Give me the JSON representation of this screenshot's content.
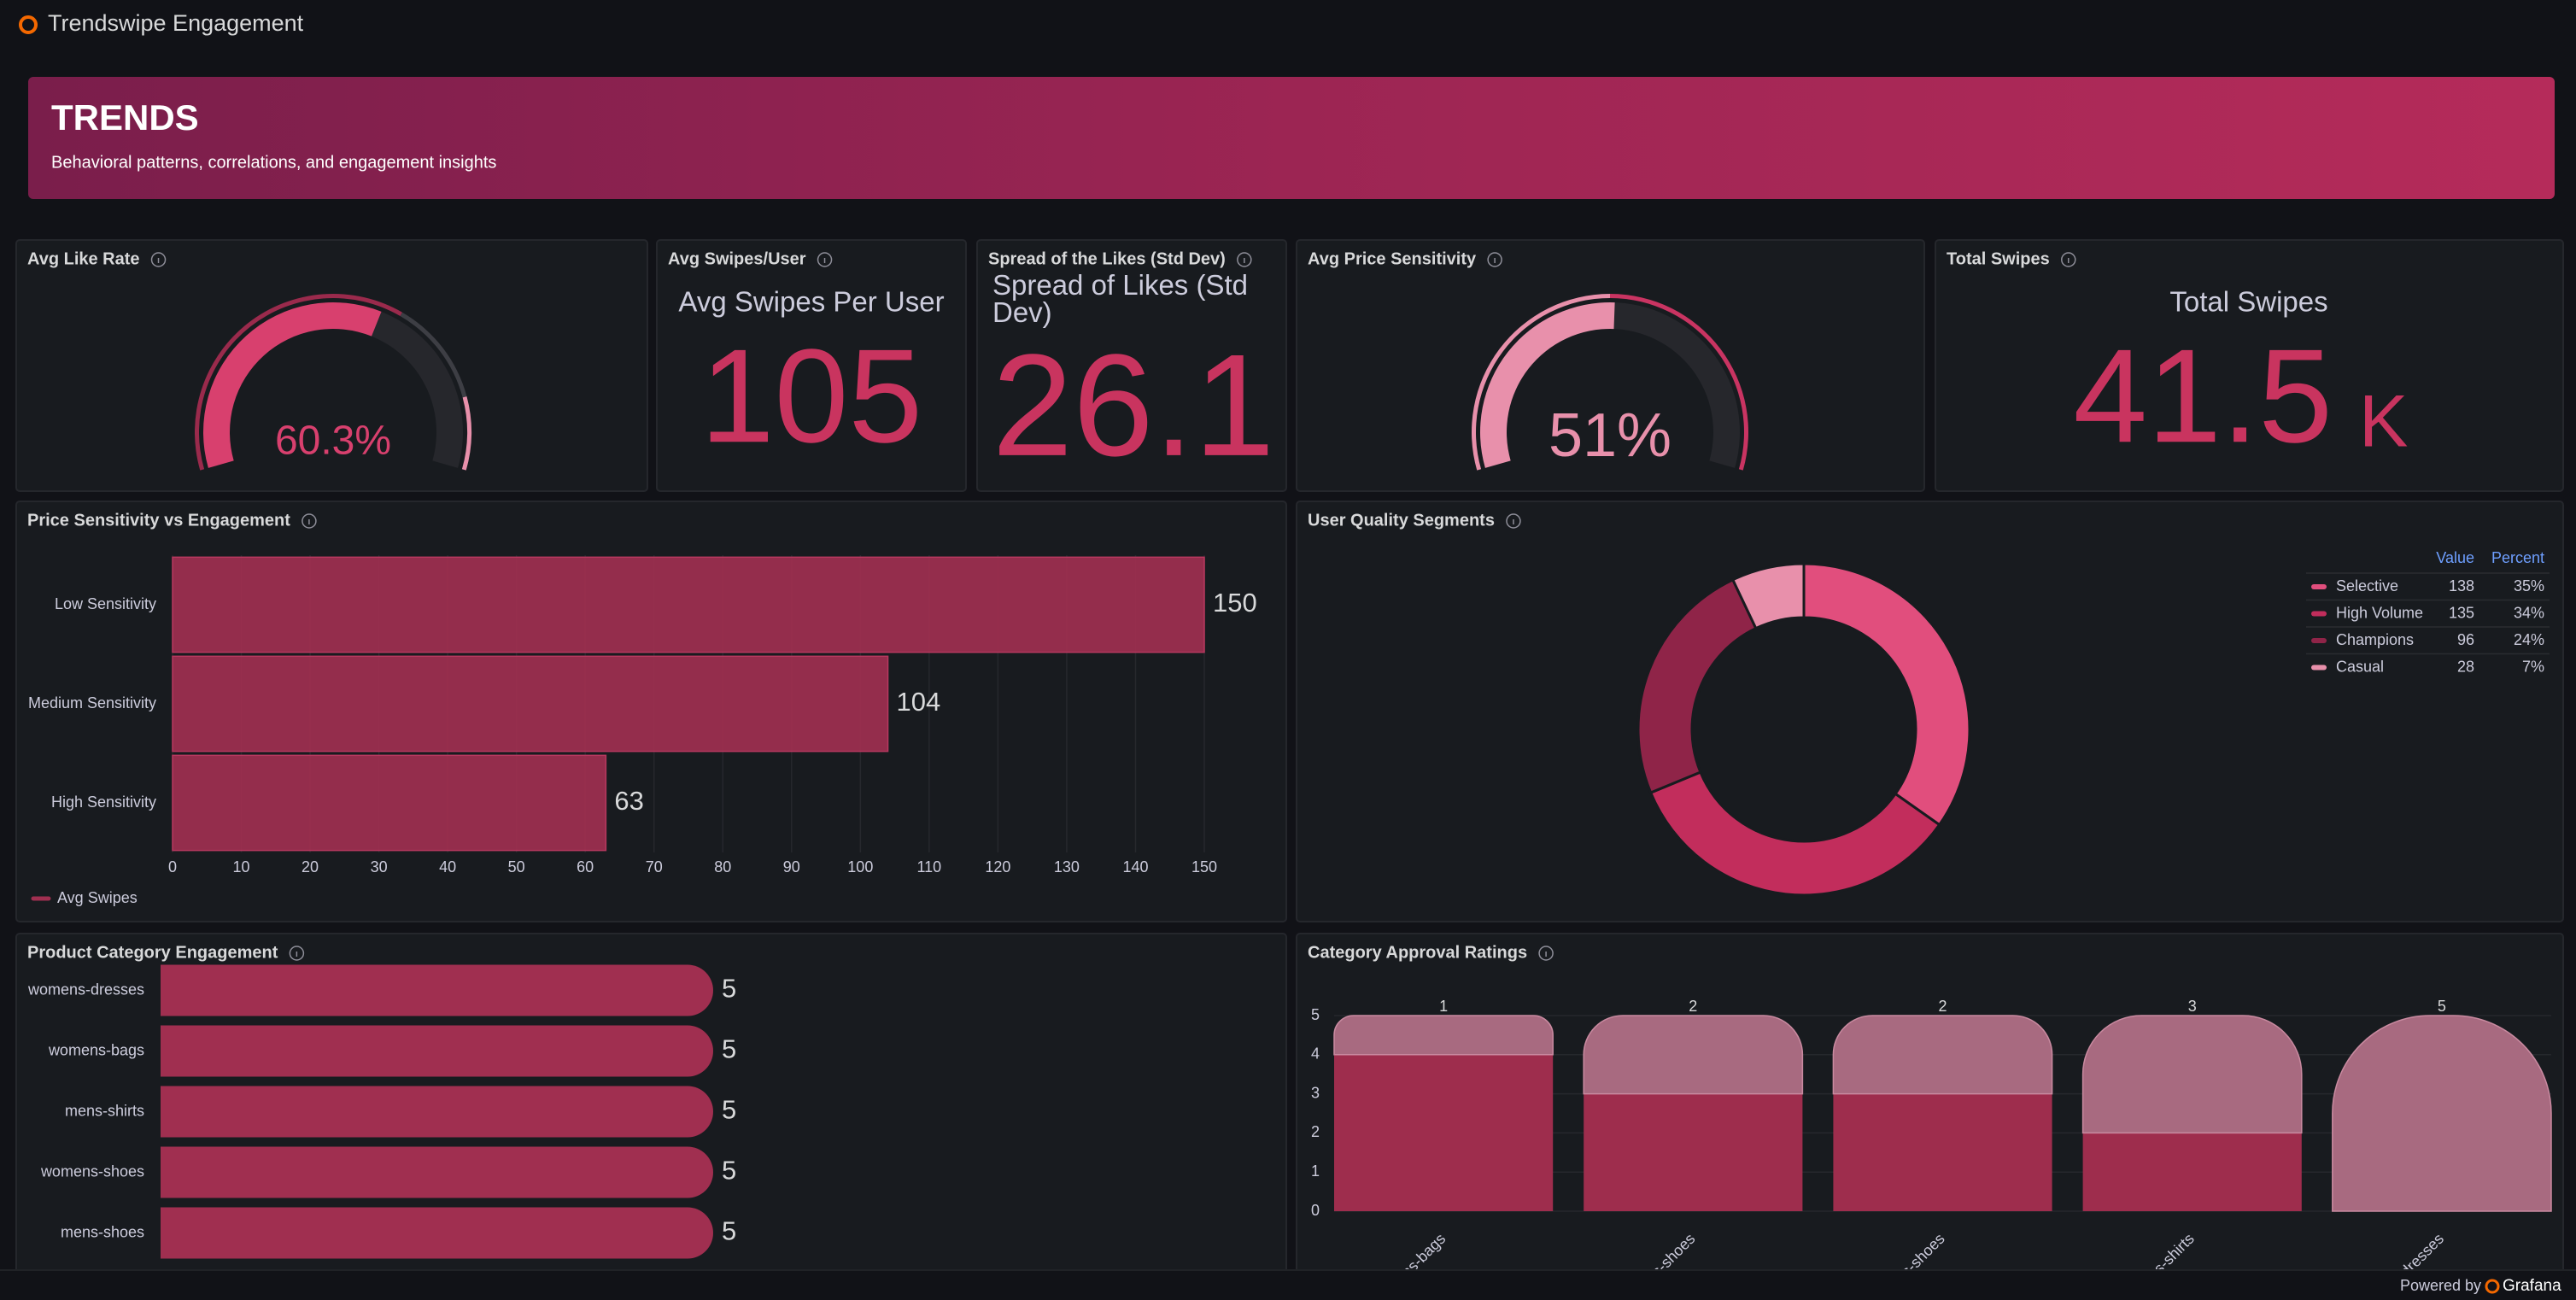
{
  "header": {
    "title": "Trendswipe Engagement"
  },
  "banner": {
    "title": "TRENDS",
    "subtitle": "Behavioral patterns, correlations, and engagement insights"
  },
  "panels": {
    "avg_like_rate": {
      "title": "Avg Like Rate",
      "type": "gauge",
      "value": 60.3,
      "value_label": "60.3%",
      "lim": [
        0,
        100
      ],
      "color": "#d8406e"
    },
    "avg_swipes": {
      "title": "Avg Swipes/User",
      "type": "stat",
      "label": "Avg Swipes Per User",
      "value": 105,
      "color": "#c9345f"
    },
    "spread": {
      "title": "Spread of the Likes (Std Dev)",
      "type": "stat",
      "label": "Spread of Likes (Std Dev)",
      "value": 26.1,
      "color": "#c9345f"
    },
    "price_sensitivity": {
      "title": "Avg Price Sensitivity",
      "type": "gauge",
      "value": 51,
      "value_label": "51%",
      "lim": [
        0,
        100
      ],
      "color": "#e890ab"
    },
    "total_swipes": {
      "title": "Total Swipes",
      "type": "stat",
      "label": "Total Swipes",
      "value": 41.5,
      "unit": "K",
      "color": "#c9345f"
    },
    "price_vs_engagement": {
      "title": "Price Sensitivity vs Engagement",
      "chart_data": {
        "type": "bar",
        "orientation": "horizontal",
        "categories": [
          "Low Sensitivity",
          "Medium Sensitivity",
          "High Sensitivity"
        ],
        "series": [
          {
            "name": "Avg Swipes",
            "color": "#a02f50",
            "values": [
              150,
              104,
              63
            ]
          }
        ],
        "xlim": [
          0,
          150
        ],
        "xticks": [
          0,
          10,
          20,
          30,
          40,
          50,
          60,
          70,
          80,
          90,
          100,
          110,
          120,
          130,
          140,
          150
        ],
        "grid": true,
        "legend": "bottom-left"
      }
    },
    "user_segments": {
      "title": "User Quality Segments",
      "chart_data": {
        "type": "donut",
        "categories": [
          "Selective",
          "High Volume",
          "Champions",
          "Casual"
        ],
        "values": [
          138,
          135,
          96,
          28
        ],
        "percent": {
          "values": [
            35,
            34,
            24,
            7
          ],
          "value_labels": [
            "35%",
            "34%",
            "24%",
            "7%"
          ]
        },
        "colors": [
          "#e14e7d",
          "#c22d5c",
          "#8f2448",
          "#e890ab"
        ],
        "legend_columns": [
          "Value",
          "Percent"
        ],
        "legend": "right"
      }
    },
    "product_category": {
      "title": "Product Category Engagement",
      "chart_data": {
        "type": "bar",
        "orientation": "horizontal",
        "categories": [
          "womens-dresses",
          "womens-bags",
          "mens-shirts",
          "womens-shoes",
          "mens-shoes"
        ],
        "series": [
          {
            "color": "#a02f50",
            "values": [
              5,
              5,
              5,
              5,
              5
            ]
          }
        ],
        "xlim": [
          0,
          10
        ]
      }
    },
    "approval": {
      "title": "Category Approval Ratings",
      "chart_data": {
        "type": "bar",
        "orientation": "vertical",
        "stacked": true,
        "categories": [
          "womens-bags",
          "mens-shoes",
          "womens-shoes",
          "mens-shirts",
          "womens-dresses"
        ],
        "series": [
          {
            "color": "#9e2d4d",
            "values": [
              4,
              3,
              3,
              2,
              0
            ]
          },
          {
            "color": "#a86a80",
            "values": [
              1,
              2,
              2,
              3,
              5
            ]
          }
        ],
        "ylim": [
          0,
          5
        ],
        "yticks": [
          0,
          1,
          2,
          3,
          4,
          5
        ],
        "grid": true
      }
    }
  },
  "footer": {
    "text": "Powered by",
    "brand": "Grafana"
  }
}
